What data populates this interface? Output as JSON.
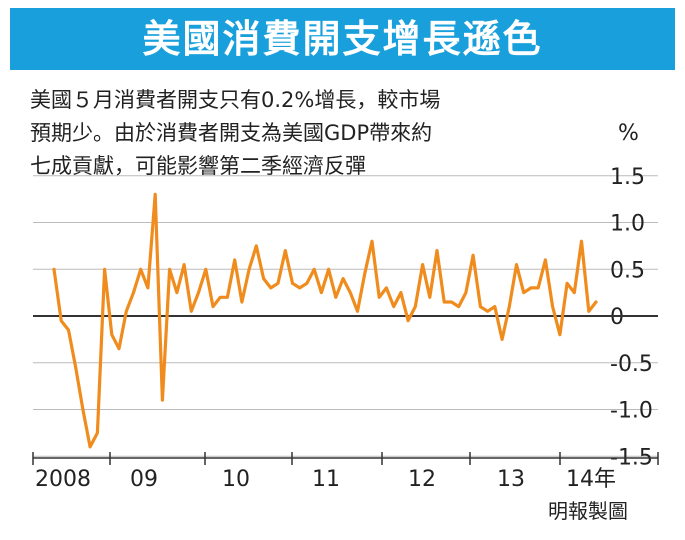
{
  "title": "美國消費開支增長遜色",
  "description_lines": [
    "美國５月消費者開支只有0.2%增長，較市場",
    "預期少。由於消費者開支為美國GDP帶來約",
    "七成貢獻，可能影響第二季經濟反彈"
  ],
  "credit": "明報製圖",
  "colors": {
    "title_bg": "#19a0dc",
    "line": "#f08c1e",
    "grid": "#bbbbbb",
    "axis": "#333333"
  },
  "chart_data": {
    "type": "line",
    "title": "美國消費開支增長遜色",
    "ylabel": "%",
    "ylim": [
      -1.5,
      1.5
    ],
    "yticks": [
      1.5,
      1.0,
      0.5,
      0,
      -0.5,
      -1.0,
      -1.5
    ],
    "ytick_labels": [
      "1.5",
      "1.0",
      "0.5",
      "0",
      "-0.5",
      "-1.0",
      "-1.5"
    ],
    "xtick_labels": [
      "2008",
      "09",
      "10",
      "11",
      "12",
      "13",
      "14年"
    ],
    "grid": true,
    "series": [
      {
        "name": "",
        "x_start": "2008-01",
        "frequency": "monthly",
        "values": [
          0.5,
          -0.05,
          -0.15,
          -0.55,
          -1.0,
          -1.4,
          -1.25,
          0.5,
          -0.2,
          -0.35,
          0.05,
          0.25,
          0.5,
          0.3,
          1.3,
          -0.9,
          0.5,
          0.25,
          0.55,
          0.05,
          0.25,
          0.5,
          0.1,
          0.2,
          0.2,
          0.6,
          0.15,
          0.5,
          0.75,
          0.4,
          0.3,
          0.35,
          0.7,
          0.35,
          0.3,
          0.35,
          0.5,
          0.25,
          0.5,
          0.2,
          0.4,
          0.25,
          0.05,
          0.45,
          0.8,
          0.2,
          0.3,
          0.1,
          0.25,
          -0.05,
          0.1,
          0.55,
          0.2,
          0.7,
          0.15,
          0.15,
          0.1,
          0.25,
          0.65,
          0.1,
          0.05,
          0.1,
          -0.25,
          0.1,
          0.55,
          0.25,
          0.3,
          0.3,
          0.6,
          0.1,
          -0.2,
          0.35,
          0.25,
          0.8,
          0.05,
          0.15
        ]
      }
    ]
  }
}
